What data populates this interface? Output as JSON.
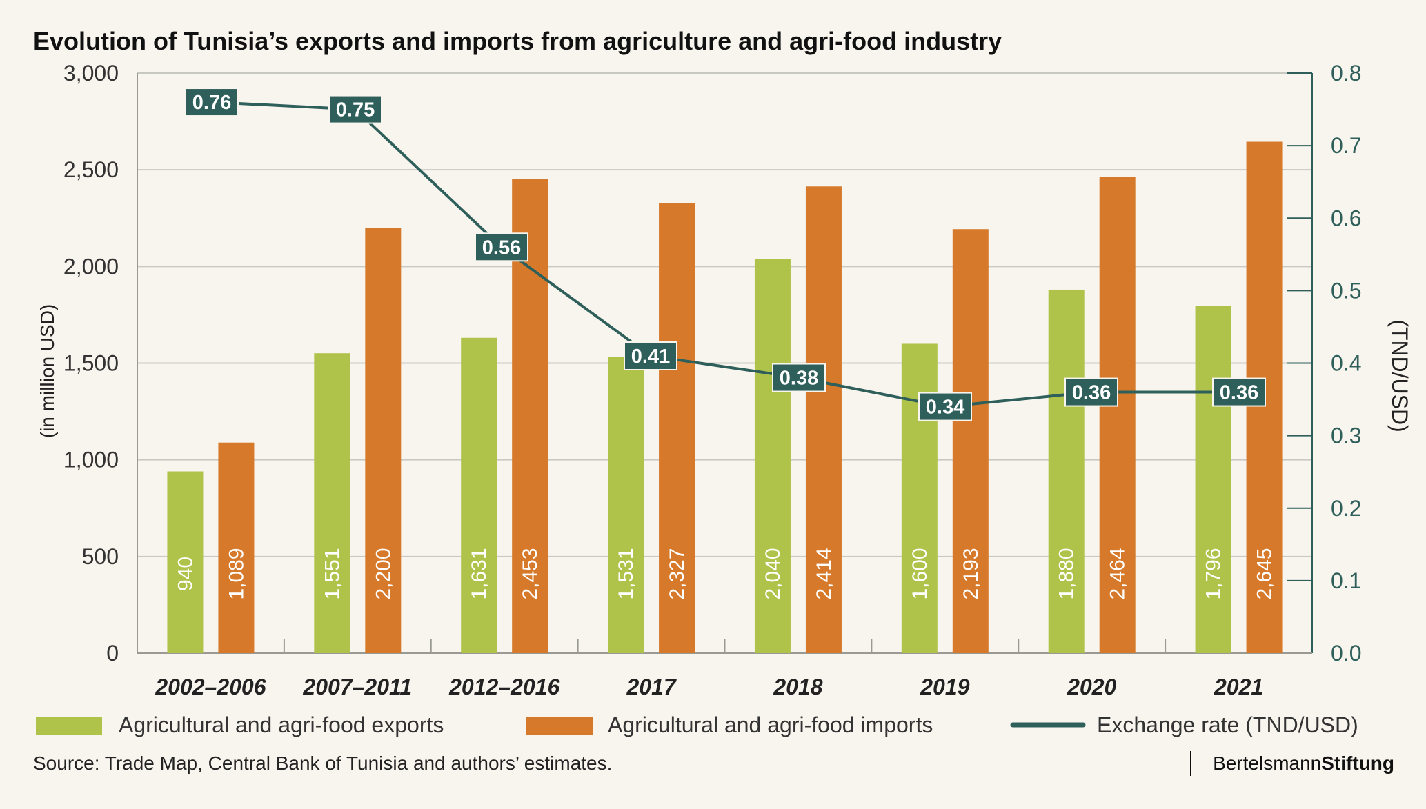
{
  "title": "Evolution of Tunisia’s exports and imports from agriculture and agri-food industry",
  "source": "Source: Trade Map, Central Bank of Tunisia and authors’ estimates.",
  "brand": {
    "regular": "Bertelsmann",
    "bold": "Stiftung"
  },
  "colors": {
    "exports": "#afc24a",
    "imports": "#d6792a",
    "exchange_rate": "#2f5f5a",
    "grid": "#c9c9c4",
    "axis": "#9a9a94"
  },
  "chart_data": {
    "type": "bar",
    "title": "Evolution of Tunisia’s exports and imports from agriculture and agri-food industry",
    "categories": [
      "2002–2006",
      "2007–2011",
      "2012–2016",
      "2017",
      "2018",
      "2019",
      "2020",
      "2021"
    ],
    "series": [
      {
        "name": "Agricultural and agri-food exports",
        "type": "bar",
        "axis": "left",
        "values": [
          940,
          1551,
          1631,
          1531,
          2040,
          1600,
          1880,
          1796
        ],
        "labels": [
          "940",
          "1,551",
          "1,631",
          "1,531",
          "2,040",
          "1,600",
          "1,880",
          "1,796"
        ]
      },
      {
        "name": "Agricultural and agri-food imports",
        "type": "bar",
        "axis": "left",
        "values": [
          1089,
          2200,
          2453,
          2327,
          2414,
          2193,
          2464,
          2645
        ],
        "labels": [
          "1,089",
          "2,200",
          "2,453",
          "2,327",
          "2,414",
          "2,193",
          "2,464",
          "2,645"
        ]
      },
      {
        "name": "Exchange rate (TND/USD)",
        "type": "line",
        "axis": "right",
        "values": [
          0.76,
          0.75,
          0.56,
          0.41,
          0.38,
          0.34,
          0.36,
          0.36
        ],
        "labels": [
          "0.76",
          "0.75",
          "0.56",
          "0.41",
          "0.38",
          "0.34",
          "0.36",
          "0.36"
        ]
      }
    ],
    "ylabel": "(in million USD)",
    "ylim": [
      0,
      3000
    ],
    "yticks": [
      "0",
      "500",
      "1,000",
      "1,500",
      "2,000",
      "2,500",
      "3,000"
    ],
    "y2label": "(TND/USD)",
    "y2lim": [
      0,
      0.8
    ],
    "y2ticks": [
      "0.0",
      "0.1",
      "0.2",
      "0.3",
      "0.4",
      "0.5",
      "0.6",
      "0.7",
      "0.8"
    ],
    "grid": true,
    "legend_position": "bottom"
  }
}
